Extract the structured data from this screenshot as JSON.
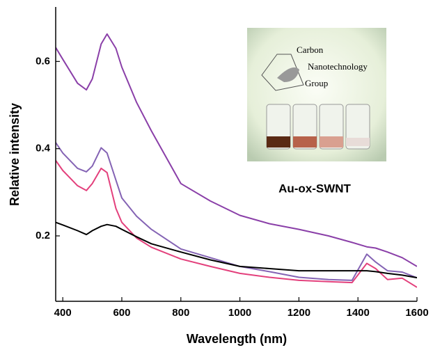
{
  "chart_data": {
    "type": "line",
    "x_label": "Wavelength (nm)",
    "y_label": "Relative intensity",
    "annotation": "Au-ox-SWNT",
    "inset_text": [
      "Carbon",
      "Nanotechnology",
      "Group"
    ],
    "x": [
      376,
      400,
      450,
      480,
      500,
      530,
      550,
      580,
      600,
      650,
      700,
      800,
      900,
      1000,
      1100,
      1200,
      1300,
      1380,
      1430,
      1460,
      1500,
      1550,
      1600
    ],
    "series": [
      {
        "color": "#8a3fa8",
        "values": [
          0.632,
          0.605,
          0.55,
          0.535,
          0.56,
          0.64,
          0.663,
          0.63,
          0.587,
          0.506,
          0.441,
          0.32,
          0.28,
          0.247,
          0.228,
          0.215,
          0.2,
          0.185,
          0.175,
          0.172,
          0.163,
          0.15,
          0.13
        ]
      },
      {
        "color": "#8463b4",
        "values": [
          0.414,
          0.39,
          0.355,
          0.347,
          0.36,
          0.402,
          0.39,
          0.328,
          0.287,
          0.245,
          0.215,
          0.17,
          0.15,
          0.13,
          0.118,
          0.105,
          0.1,
          0.098,
          0.158,
          0.14,
          0.12,
          0.117,
          0.104
        ]
      },
      {
        "color": "#e3407c",
        "values": [
          0.373,
          0.35,
          0.315,
          0.304,
          0.32,
          0.355,
          0.345,
          0.263,
          0.231,
          0.195,
          0.174,
          0.147,
          0.13,
          0.114,
          0.105,
          0.098,
          0.095,
          0.093,
          0.137,
          0.125,
          0.1,
          0.103,
          0.082
        ]
      },
      {
        "color": "#000000",
        "values": [
          0.231,
          0.225,
          0.212,
          0.203,
          0.212,
          0.222,
          0.226,
          0.222,
          0.215,
          0.198,
          0.182,
          0.163,
          0.145,
          0.13,
          0.125,
          0.12,
          0.12,
          0.12,
          0.12,
          0.118,
          0.114,
          0.11,
          0.104
        ]
      }
    ],
    "xlim": [
      376,
      1600
    ],
    "xticks": [
      400,
      600,
      800,
      1000,
      1200,
      1400,
      1600
    ],
    "ylim": [
      0.05,
      0.725
    ],
    "yticks": [
      0.2,
      0.4,
      0.6
    ]
  }
}
